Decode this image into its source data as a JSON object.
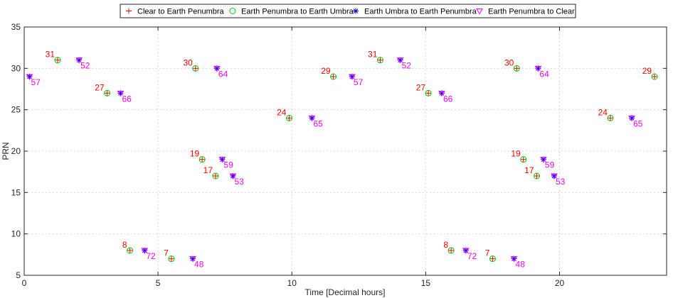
{
  "chart_data": {
    "type": "scatter",
    "xlabel": "Time [Decimal hours]",
    "ylabel": "PRN",
    "xlim": [
      0,
      24
    ],
    "ylim": [
      5,
      35
    ],
    "xticks": [
      0,
      5,
      10,
      15,
      20
    ],
    "yticks": [
      5,
      10,
      15,
      20,
      25,
      30,
      35
    ],
    "grid": true,
    "box": true,
    "legend_position": "top-center",
    "colors": {
      "clear_to_penumbra": "#ff0000",
      "penumbra_to_umbra": "#00cc00",
      "umbra_to_penumbra": "#0000ff",
      "penumbra_to_clear": "#ff00ff",
      "annotation_start": "#ff0000",
      "annotation_end": "#ff00ff"
    },
    "series": [
      {
        "name": "Clear to Earth Penumbra",
        "marker": "plus",
        "points": [
          [
            1.25,
            31
          ],
          [
            3.1,
            27
          ],
          [
            3.95,
            8
          ],
          [
            5.5,
            7
          ],
          [
            6.4,
            30
          ],
          [
            6.65,
            19
          ],
          [
            7.15,
            17
          ],
          [
            9.9,
            24
          ],
          [
            11.55,
            29
          ],
          [
            13.3,
            31
          ],
          [
            15.1,
            27
          ],
          [
            15.95,
            8
          ],
          [
            17.5,
            7
          ],
          [
            18.4,
            30
          ],
          [
            18.65,
            19
          ],
          [
            19.15,
            17
          ],
          [
            21.9,
            24
          ],
          [
            23.55,
            29
          ]
        ]
      },
      {
        "name": "Earth Penumbra to Earth Umbra",
        "marker": "circle",
        "points": [
          [
            1.25,
            31
          ],
          [
            3.1,
            27
          ],
          [
            3.95,
            8
          ],
          [
            5.5,
            7
          ],
          [
            6.4,
            30
          ],
          [
            6.65,
            19
          ],
          [
            7.15,
            17
          ],
          [
            9.9,
            24
          ],
          [
            11.55,
            29
          ],
          [
            13.3,
            31
          ],
          [
            15.1,
            27
          ],
          [
            15.95,
            8
          ],
          [
            17.5,
            7
          ],
          [
            18.4,
            30
          ],
          [
            18.65,
            19
          ],
          [
            19.15,
            17
          ],
          [
            21.9,
            24
          ],
          [
            23.55,
            29
          ]
        ]
      },
      {
        "name": "Earth Umbra to Earth Penumbra",
        "marker": "asterisk",
        "points": [
          [
            0.2,
            29
          ],
          [
            2.05,
            31
          ],
          [
            3.6,
            27
          ],
          [
            4.5,
            8
          ],
          [
            6.3,
            7
          ],
          [
            7.2,
            30
          ],
          [
            7.4,
            19
          ],
          [
            7.8,
            17
          ],
          [
            10.75,
            24
          ],
          [
            12.25,
            29
          ],
          [
            14.05,
            31
          ],
          [
            15.6,
            27
          ],
          [
            16.5,
            8
          ],
          [
            18.3,
            7
          ],
          [
            19.2,
            30
          ],
          [
            19.4,
            19
          ],
          [
            19.8,
            17
          ],
          [
            22.7,
            24
          ]
        ]
      },
      {
        "name": "Earth Penumbra to Clear",
        "marker": "triangle-down",
        "points": [
          [
            0.2,
            29
          ],
          [
            2.05,
            31
          ],
          [
            3.6,
            27
          ],
          [
            4.5,
            8
          ],
          [
            6.3,
            7
          ],
          [
            7.2,
            30
          ],
          [
            7.4,
            19
          ],
          [
            7.8,
            17
          ],
          [
            10.75,
            24
          ],
          [
            12.25,
            29
          ],
          [
            14.05,
            31
          ],
          [
            15.6,
            27
          ],
          [
            16.5,
            8
          ],
          [
            18.3,
            7
          ],
          [
            19.2,
            30
          ],
          [
            19.4,
            19
          ],
          [
            19.8,
            17
          ],
          [
            22.7,
            24
          ]
        ]
      }
    ],
    "annotations_start": [
      {
        "x": 1.25,
        "y": 31,
        "text": "31"
      },
      {
        "x": 3.1,
        "y": 27,
        "text": "27"
      },
      {
        "x": 3.95,
        "y": 8,
        "text": "8"
      },
      {
        "x": 5.5,
        "y": 7,
        "text": "7"
      },
      {
        "x": 6.4,
        "y": 30,
        "text": "30"
      },
      {
        "x": 6.65,
        "y": 19,
        "text": "19"
      },
      {
        "x": 7.15,
        "y": 17,
        "text": "17"
      },
      {
        "x": 9.9,
        "y": 24,
        "text": "24"
      },
      {
        "x": 11.55,
        "y": 29,
        "text": "29"
      },
      {
        "x": 13.3,
        "y": 31,
        "text": "31"
      },
      {
        "x": 15.1,
        "y": 27,
        "text": "27"
      },
      {
        "x": 15.95,
        "y": 8,
        "text": "8"
      },
      {
        "x": 17.5,
        "y": 7,
        "text": "7"
      },
      {
        "x": 18.4,
        "y": 30,
        "text": "30"
      },
      {
        "x": 18.65,
        "y": 19,
        "text": "19"
      },
      {
        "x": 19.15,
        "y": 17,
        "text": "17"
      },
      {
        "x": 21.9,
        "y": 24,
        "text": "24"
      },
      {
        "x": 23.55,
        "y": 29,
        "text": "29"
      }
    ],
    "annotations_end": [
      {
        "x": 0.2,
        "y": 29,
        "text": "57"
      },
      {
        "x": 2.05,
        "y": 31,
        "text": "52"
      },
      {
        "x": 3.6,
        "y": 27,
        "text": "66"
      },
      {
        "x": 4.5,
        "y": 8,
        "text": "72"
      },
      {
        "x": 6.3,
        "y": 7,
        "text": "48"
      },
      {
        "x": 7.2,
        "y": 30,
        "text": "64"
      },
      {
        "x": 7.4,
        "y": 19,
        "text": "59"
      },
      {
        "x": 7.8,
        "y": 17,
        "text": "53"
      },
      {
        "x": 10.75,
        "y": 24,
        "text": "65"
      },
      {
        "x": 12.25,
        "y": 29,
        "text": "57"
      },
      {
        "x": 14.05,
        "y": 31,
        "text": "52"
      },
      {
        "x": 15.6,
        "y": 27,
        "text": "66"
      },
      {
        "x": 16.5,
        "y": 8,
        "text": "72"
      },
      {
        "x": 18.3,
        "y": 7,
        "text": "48"
      },
      {
        "x": 19.2,
        "y": 30,
        "text": "64"
      },
      {
        "x": 19.4,
        "y": 19,
        "text": "59"
      },
      {
        "x": 19.8,
        "y": 17,
        "text": "53"
      },
      {
        "x": 22.7,
        "y": 24,
        "text": "65"
      }
    ]
  }
}
